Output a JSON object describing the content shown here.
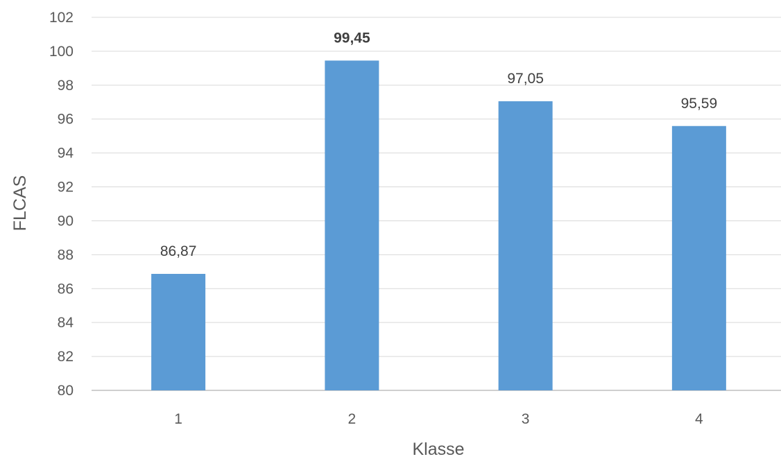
{
  "chart_data": {
    "type": "bar",
    "title": "",
    "xlabel": "Klasse",
    "ylabel": "FLCAS",
    "categories": [
      "1",
      "2",
      "3",
      "4"
    ],
    "values": [
      86.87,
      99.45,
      97.05,
      95.59
    ],
    "data_labels": [
      "86,87",
      "99,45",
      "97,05",
      "95,59"
    ],
    "bold_labels": [
      false,
      true,
      false,
      false
    ],
    "ylim": [
      80,
      102
    ],
    "yticks": [
      80,
      82,
      84,
      86,
      88,
      90,
      92,
      94,
      96,
      98,
      100,
      102
    ],
    "grid": true,
    "legend": "none",
    "colors": {
      "bar": "#5B9BD5",
      "grid": "#D9D9D9",
      "axis": "#BFBFBF",
      "text": "#595959"
    }
  }
}
